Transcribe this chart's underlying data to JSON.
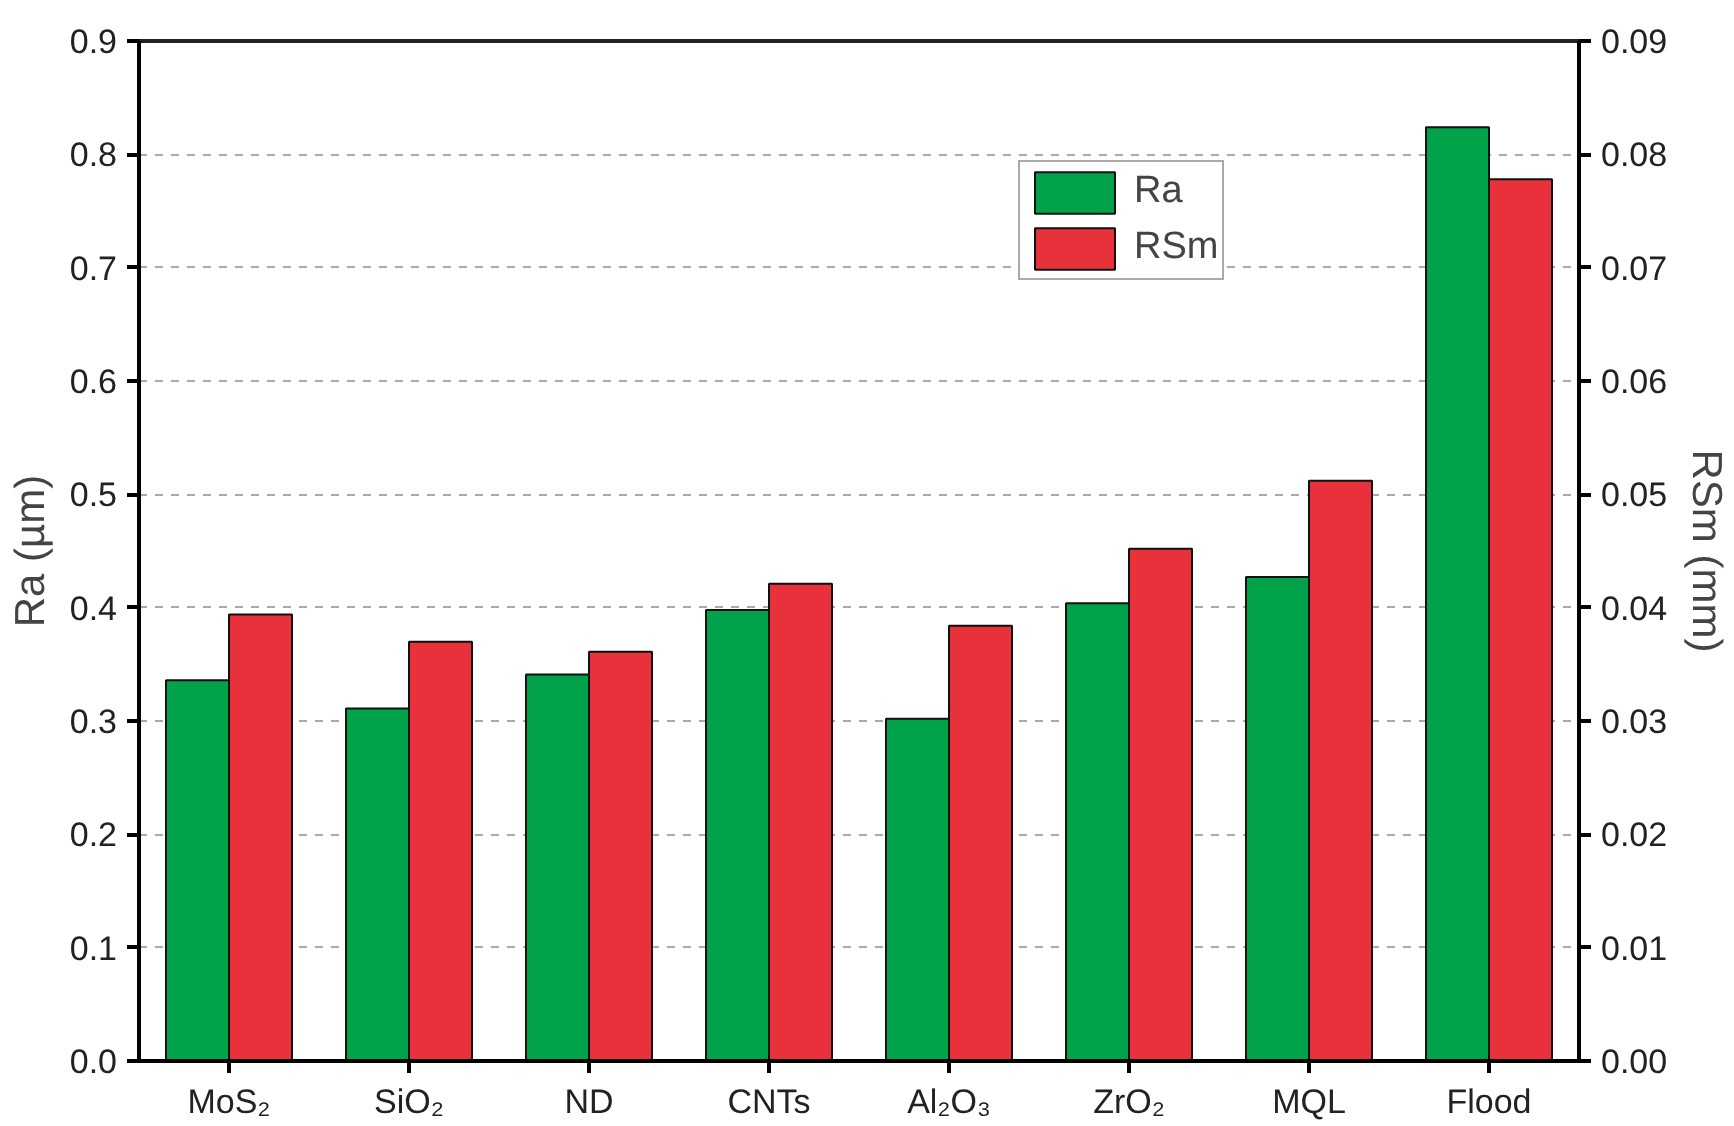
{
  "chart_data": {
    "type": "bar",
    "categories": [
      "MoS₂",
      "SiO₂",
      "ND",
      "CNTs",
      "Al₂O₃",
      "ZrO₂",
      "MQL",
      "Flood"
    ],
    "ylabel": "Ra (µm)",
    "y2label": "RSm (mm)",
    "series": [
      {
        "name": "Ra",
        "color": "#00a34a",
        "values": [
          0.336,
          0.311,
          0.341,
          0.398,
          0.302,
          0.404,
          0.427,
          0.824
        ]
      },
      {
        "name": "RSm",
        "color": "#e8313a",
        "axis": "y2",
        "values": [
          0.0394,
          0.037,
          0.0361,
          0.0421,
          0.0384,
          0.0452,
          0.0512,
          0.0778
        ]
      }
    ],
    "ylim": [
      0,
      0.9
    ],
    "yticks": [
      "0.0",
      0.1,
      0.2,
      0.3,
      0.4,
      0.5,
      0.6,
      0.7,
      0.8,
      0.9
    ],
    "y2lim": [
      0,
      0.09
    ],
    "y2ticks": [
      {
        "value": 0,
        "label": "0.00"
      },
      0.01,
      0.02,
      0.03,
      0.04,
      0.05,
      0.06,
      0.07,
      0.08,
      0.09
    ],
    "grid": "y",
    "legend": "top right"
  }
}
